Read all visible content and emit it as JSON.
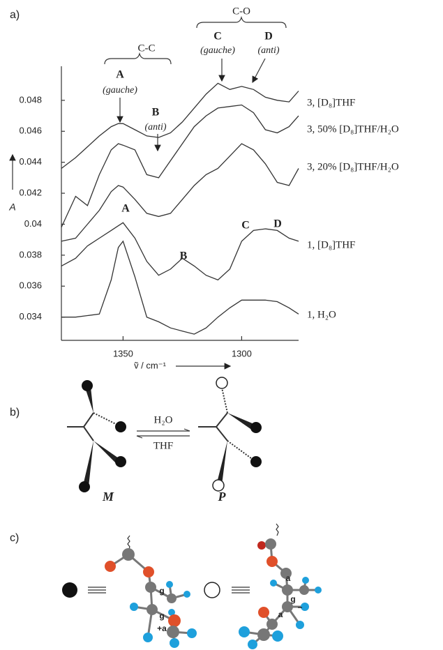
{
  "chart_data": {
    "type": "line",
    "panel_label": "a)",
    "xlabel": "ṽ / cm⁻¹",
    "ylabel": "A",
    "x": [
      1376,
      1370,
      1365,
      1360,
      1355,
      1352,
      1350,
      1345,
      1340,
      1335,
      1330,
      1325,
      1320,
      1315,
      1310,
      1305,
      1300,
      1295,
      1290,
      1285,
      1280,
      1276
    ],
    "xlim": [
      1376,
      1276
    ],
    "xticks": [
      1350,
      1300
    ],
    "ylim": [
      0.0325,
      0.0502
    ],
    "yticks": [
      0.034,
      0.036,
      0.038,
      0.04,
      0.042,
      0.044,
      0.046,
      0.048
    ],
    "grid": false,
    "series": [
      {
        "name": "3, [D₈]THF",
        "color": "#333333",
        "values": [
          0.0436,
          0.0443,
          0.045,
          0.0457,
          0.0463,
          0.0465,
          0.0465,
          0.0461,
          0.0457,
          0.0456,
          0.0459,
          0.0466,
          0.0475,
          0.0484,
          0.0491,
          0.0487,
          0.0489,
          0.0487,
          0.0482,
          0.048,
          0.0479,
          0.0486
        ]
      },
      {
        "name": "3, 50%  [D₈]THF/H₂O",
        "color": "#333333",
        "values": [
          0.0398,
          0.0418,
          0.0412,
          0.0432,
          0.0448,
          0.0452,
          0.0451,
          0.0448,
          0.0432,
          0.043,
          0.0441,
          0.0452,
          0.0463,
          0.047,
          0.0475,
          0.0476,
          0.0477,
          0.0472,
          0.0461,
          0.0459,
          0.0463,
          0.047
        ]
      },
      {
        "name": "3, 20%  [D₈]THF/H₂O",
        "color": "#333333",
        "values": [
          0.0389,
          0.0391,
          0.04,
          0.0409,
          0.0421,
          0.0425,
          0.0424,
          0.0416,
          0.0407,
          0.0405,
          0.0407,
          0.0416,
          0.0425,
          0.0432,
          0.0436,
          0.0444,
          0.0452,
          0.0448,
          0.0439,
          0.0427,
          0.0425,
          0.0436
        ]
      },
      {
        "name": "1, [D₈]THF",
        "color": "#333333",
        "values": [
          0.0373,
          0.0378,
          0.0386,
          0.0391,
          0.0396,
          0.0399,
          0.0401,
          0.0391,
          0.0376,
          0.0367,
          0.0371,
          0.0378,
          0.0373,
          0.0367,
          0.0364,
          0.0371,
          0.0389,
          0.0396,
          0.0397,
          0.0396,
          0.0391,
          0.0389
        ]
      },
      {
        "name": "1, H₂O",
        "color": "#333333",
        "values": [
          0.034,
          0.034,
          0.0341,
          0.0342,
          0.0364,
          0.0385,
          0.0389,
          0.0366,
          0.034,
          0.0337,
          0.0333,
          0.0331,
          0.0329,
          0.0333,
          0.034,
          0.0346,
          0.0351,
          0.0351,
          0.0351,
          0.035,
          0.0346,
          0.0342
        ]
      }
    ],
    "annotations": [
      "C-C",
      "C-O",
      "A",
      "(gauche)",
      "B",
      "(anti)",
      "C",
      "(gauche)",
      "D",
      "(anti)",
      "A",
      "B",
      "C",
      "D"
    ]
  },
  "panel_b": {
    "label": "b)",
    "reagent_top": "H₂O",
    "reagent_bottom": "THF",
    "left_name": "M",
    "right_name": "P"
  },
  "panel_c": {
    "label": "c)",
    "atom_labels": [
      "g",
      "g",
      "+a",
      "a",
      "g",
      "−",
      "a"
    ]
  }
}
